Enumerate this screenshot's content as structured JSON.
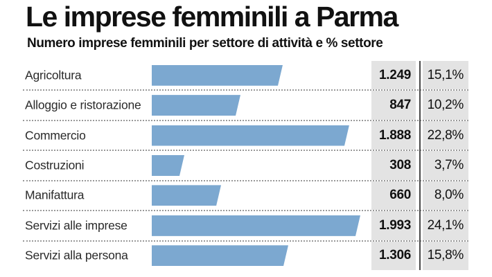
{
  "page": {
    "title": "Le imprese femminili a Parma",
    "subtitle": "Numero imprese femminili per settore di attività e % settore"
  },
  "chart_data": {
    "type": "bar",
    "orientation": "horizontal",
    "title": "Le imprese femminili a Parma",
    "subtitle": "Numero imprese femminili per settore di attività e % settore",
    "categories": [
      "Agricoltura",
      "Alloggio e ristorazione",
      "Commercio",
      "Costruzioni",
      "Manifattura",
      "Servizi alle imprese",
      "Servizi alla persona"
    ],
    "series": [
      {
        "name": "Numero imprese femminili",
        "values": [
          1249,
          847,
          1888,
          308,
          660,
          1993,
          1306
        ],
        "labels": [
          "1.249",
          "847",
          "1.888",
          "308",
          "660",
          "1.993",
          "1.306"
        ]
      },
      {
        "name": "% settore",
        "values": [
          15.1,
          10.2,
          22.8,
          3.7,
          8.0,
          24.1,
          15.8
        ],
        "labels": [
          "15,1%",
          "10,2%",
          "22,8%",
          "3,7%",
          "8,0%",
          "24,1%",
          "15,8%"
        ]
      }
    ],
    "max_value": 1993,
    "legend": false,
    "grid": false,
    "colors": {
      "bar": "#7ca8d0",
      "cell_background": "#e3e3e3",
      "divider_line": "#4a4a4a",
      "dotted_separator": "#999999",
      "text": "#111111"
    }
  }
}
